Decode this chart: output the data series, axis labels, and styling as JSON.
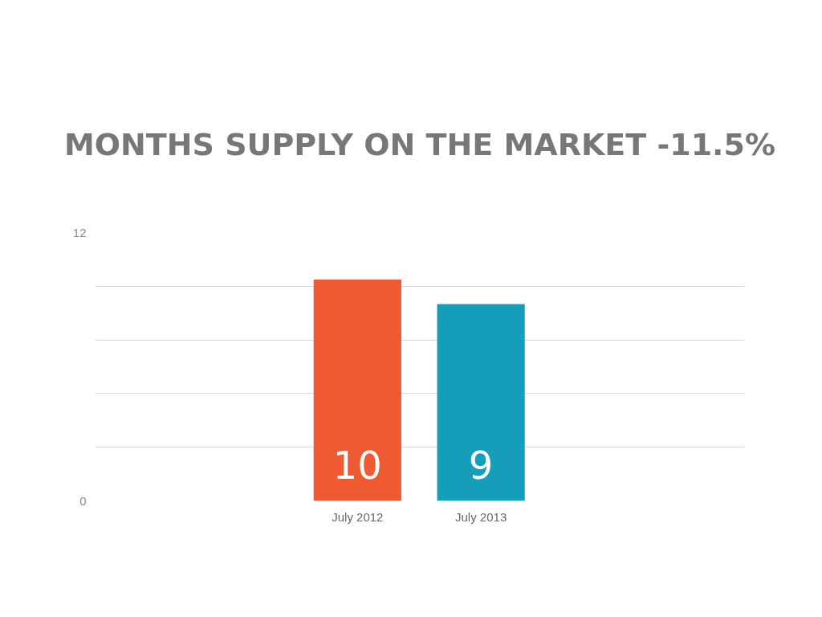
{
  "chart_data": {
    "type": "bar",
    "title": "MONTHS SUPPLY ON THE MARKET -11.5%",
    "categories": [
      "July 2012",
      "July 2013"
    ],
    "values": [
      9.9,
      8.8
    ],
    "colors": [
      "#f05a33",
      "#159dba"
    ],
    "value_labels": [
      "10",
      "9"
    ],
    "ylim": [
      0,
      12
    ],
    "yticks": [
      0,
      {
        "value": 2.4,
        "label": null
      },
      {
        "value": 4.8,
        "label": null
      },
      {
        "value": 7.2,
        "label": null
      },
      {
        "value": 9.6,
        "label": null
      },
      12
    ],
    "grid": "y"
  }
}
